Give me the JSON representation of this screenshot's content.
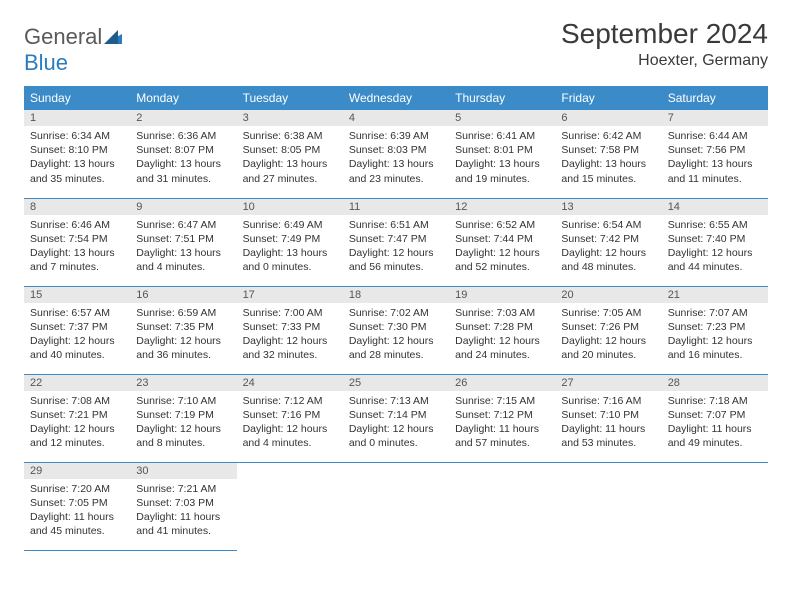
{
  "logo": {
    "text_general": "General",
    "text_blue": "Blue"
  },
  "title": "September 2024",
  "location": "Hoexter, Germany",
  "day_headers": [
    "Sunday",
    "Monday",
    "Tuesday",
    "Wednesday",
    "Thursday",
    "Friday",
    "Saturday"
  ],
  "header_bg": "#3b8bc8",
  "daynum_bg": "#e8e8e8",
  "border_color": "#3b8bc8",
  "days": [
    {
      "n": "1",
      "sr": "Sunrise: 6:34 AM",
      "ss": "Sunset: 8:10 PM",
      "dl": "Daylight: 13 hours and 35 minutes."
    },
    {
      "n": "2",
      "sr": "Sunrise: 6:36 AM",
      "ss": "Sunset: 8:07 PM",
      "dl": "Daylight: 13 hours and 31 minutes."
    },
    {
      "n": "3",
      "sr": "Sunrise: 6:38 AM",
      "ss": "Sunset: 8:05 PM",
      "dl": "Daylight: 13 hours and 27 minutes."
    },
    {
      "n": "4",
      "sr": "Sunrise: 6:39 AM",
      "ss": "Sunset: 8:03 PM",
      "dl": "Daylight: 13 hours and 23 minutes."
    },
    {
      "n": "5",
      "sr": "Sunrise: 6:41 AM",
      "ss": "Sunset: 8:01 PM",
      "dl": "Daylight: 13 hours and 19 minutes."
    },
    {
      "n": "6",
      "sr": "Sunrise: 6:42 AM",
      "ss": "Sunset: 7:58 PM",
      "dl": "Daylight: 13 hours and 15 minutes."
    },
    {
      "n": "7",
      "sr": "Sunrise: 6:44 AM",
      "ss": "Sunset: 7:56 PM",
      "dl": "Daylight: 13 hours and 11 minutes."
    },
    {
      "n": "8",
      "sr": "Sunrise: 6:46 AM",
      "ss": "Sunset: 7:54 PM",
      "dl": "Daylight: 13 hours and 7 minutes."
    },
    {
      "n": "9",
      "sr": "Sunrise: 6:47 AM",
      "ss": "Sunset: 7:51 PM",
      "dl": "Daylight: 13 hours and 4 minutes."
    },
    {
      "n": "10",
      "sr": "Sunrise: 6:49 AM",
      "ss": "Sunset: 7:49 PM",
      "dl": "Daylight: 13 hours and 0 minutes."
    },
    {
      "n": "11",
      "sr": "Sunrise: 6:51 AM",
      "ss": "Sunset: 7:47 PM",
      "dl": "Daylight: 12 hours and 56 minutes."
    },
    {
      "n": "12",
      "sr": "Sunrise: 6:52 AM",
      "ss": "Sunset: 7:44 PM",
      "dl": "Daylight: 12 hours and 52 minutes."
    },
    {
      "n": "13",
      "sr": "Sunrise: 6:54 AM",
      "ss": "Sunset: 7:42 PM",
      "dl": "Daylight: 12 hours and 48 minutes."
    },
    {
      "n": "14",
      "sr": "Sunrise: 6:55 AM",
      "ss": "Sunset: 7:40 PM",
      "dl": "Daylight: 12 hours and 44 minutes."
    },
    {
      "n": "15",
      "sr": "Sunrise: 6:57 AM",
      "ss": "Sunset: 7:37 PM",
      "dl": "Daylight: 12 hours and 40 minutes."
    },
    {
      "n": "16",
      "sr": "Sunrise: 6:59 AM",
      "ss": "Sunset: 7:35 PM",
      "dl": "Daylight: 12 hours and 36 minutes."
    },
    {
      "n": "17",
      "sr": "Sunrise: 7:00 AM",
      "ss": "Sunset: 7:33 PM",
      "dl": "Daylight: 12 hours and 32 minutes."
    },
    {
      "n": "18",
      "sr": "Sunrise: 7:02 AM",
      "ss": "Sunset: 7:30 PM",
      "dl": "Daylight: 12 hours and 28 minutes."
    },
    {
      "n": "19",
      "sr": "Sunrise: 7:03 AM",
      "ss": "Sunset: 7:28 PM",
      "dl": "Daylight: 12 hours and 24 minutes."
    },
    {
      "n": "20",
      "sr": "Sunrise: 7:05 AM",
      "ss": "Sunset: 7:26 PM",
      "dl": "Daylight: 12 hours and 20 minutes."
    },
    {
      "n": "21",
      "sr": "Sunrise: 7:07 AM",
      "ss": "Sunset: 7:23 PM",
      "dl": "Daylight: 12 hours and 16 minutes."
    },
    {
      "n": "22",
      "sr": "Sunrise: 7:08 AM",
      "ss": "Sunset: 7:21 PM",
      "dl": "Daylight: 12 hours and 12 minutes."
    },
    {
      "n": "23",
      "sr": "Sunrise: 7:10 AM",
      "ss": "Sunset: 7:19 PM",
      "dl": "Daylight: 12 hours and 8 minutes."
    },
    {
      "n": "24",
      "sr": "Sunrise: 7:12 AM",
      "ss": "Sunset: 7:16 PM",
      "dl": "Daylight: 12 hours and 4 minutes."
    },
    {
      "n": "25",
      "sr": "Sunrise: 7:13 AM",
      "ss": "Sunset: 7:14 PM",
      "dl": "Daylight: 12 hours and 0 minutes."
    },
    {
      "n": "26",
      "sr": "Sunrise: 7:15 AM",
      "ss": "Sunset: 7:12 PM",
      "dl": "Daylight: 11 hours and 57 minutes."
    },
    {
      "n": "27",
      "sr": "Sunrise: 7:16 AM",
      "ss": "Sunset: 7:10 PM",
      "dl": "Daylight: 11 hours and 53 minutes."
    },
    {
      "n": "28",
      "sr": "Sunrise: 7:18 AM",
      "ss": "Sunset: 7:07 PM",
      "dl": "Daylight: 11 hours and 49 minutes."
    },
    {
      "n": "29",
      "sr": "Sunrise: 7:20 AM",
      "ss": "Sunset: 7:05 PM",
      "dl": "Daylight: 11 hours and 45 minutes."
    },
    {
      "n": "30",
      "sr": "Sunrise: 7:21 AM",
      "ss": "Sunset: 7:03 PM",
      "dl": "Daylight: 11 hours and 41 minutes."
    }
  ]
}
